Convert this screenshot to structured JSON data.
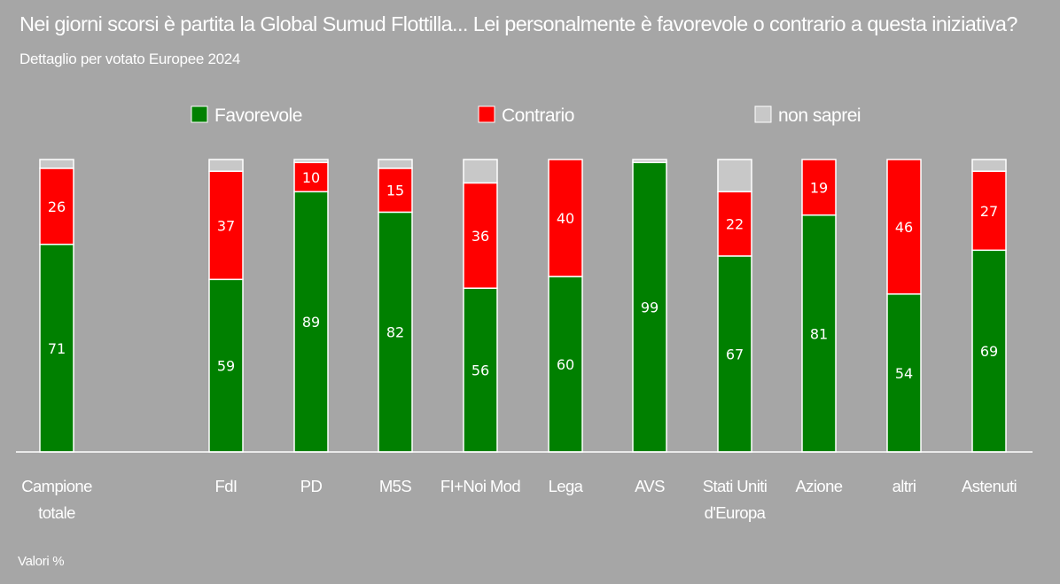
{
  "title": "Nei giorni scorsi è partita la Global Sumud Flottilla... Lei personalmente è favorevole o contrario a questa iniziativa?",
  "subtitle": "Dettaglio per votato Europee 2024",
  "note": "Valori %",
  "colors": {
    "background": "#a6a6a6",
    "favorevole": "#008000",
    "contrario": "#ff0000",
    "non_saprei": "#c8c8c8",
    "text": "#ffffff"
  },
  "chart_data": {
    "type": "bar",
    "stacked": true,
    "orientation": "vertical",
    "title": "Nei giorni scorsi è partita la Global Sumud Flottilla... Lei personalmente è favorevole o contrario a questa iniziativa?",
    "subtitle": "Dettaglio per votato Europee 2024",
    "ylim": [
      0,
      100
    ],
    "categories": [
      [
        "Campione",
        "totale"
      ],
      [
        "FdI"
      ],
      [
        "PD"
      ],
      [
        "M5S"
      ],
      [
        "FI+Noi Mod"
      ],
      [
        "Lega"
      ],
      [
        "AVS"
      ],
      [
        "Stati Uniti",
        "d'Europa"
      ],
      [
        "Azione"
      ],
      [
        "altri"
      ],
      [
        "Astenuti"
      ]
    ],
    "series": [
      {
        "name": "Favorevole",
        "key": "favorevole",
        "values": [
          71,
          59,
          89,
          82,
          56,
          60,
          99,
          67,
          81,
          54,
          69
        ],
        "labels": [
          "71",
          "59",
          "89",
          "82",
          "56",
          "60",
          "99",
          "67",
          "81",
          "54",
          "69"
        ]
      },
      {
        "name": "Contrario",
        "key": "contrario",
        "values": [
          26,
          37,
          10,
          15,
          36,
          40,
          0,
          22,
          19,
          46,
          27
        ],
        "labels": [
          "26",
          "37",
          "10",
          "15",
          "36",
          "40",
          "",
          "22",
          "19",
          "46",
          "27"
        ]
      },
      {
        "name": "non saprei",
        "key": "non_saprei",
        "values": [
          3,
          4,
          1,
          3,
          8,
          0,
          1,
          11,
          0,
          0,
          4
        ],
        "labels": [
          "",
          "",
          "",
          "",
          "",
          "",
          "",
          "",
          "",
          "",
          ""
        ]
      }
    ],
    "legend": [
      "Favorevole",
      "Contrario",
      "non saprei"
    ],
    "legend_position": "top-center"
  }
}
